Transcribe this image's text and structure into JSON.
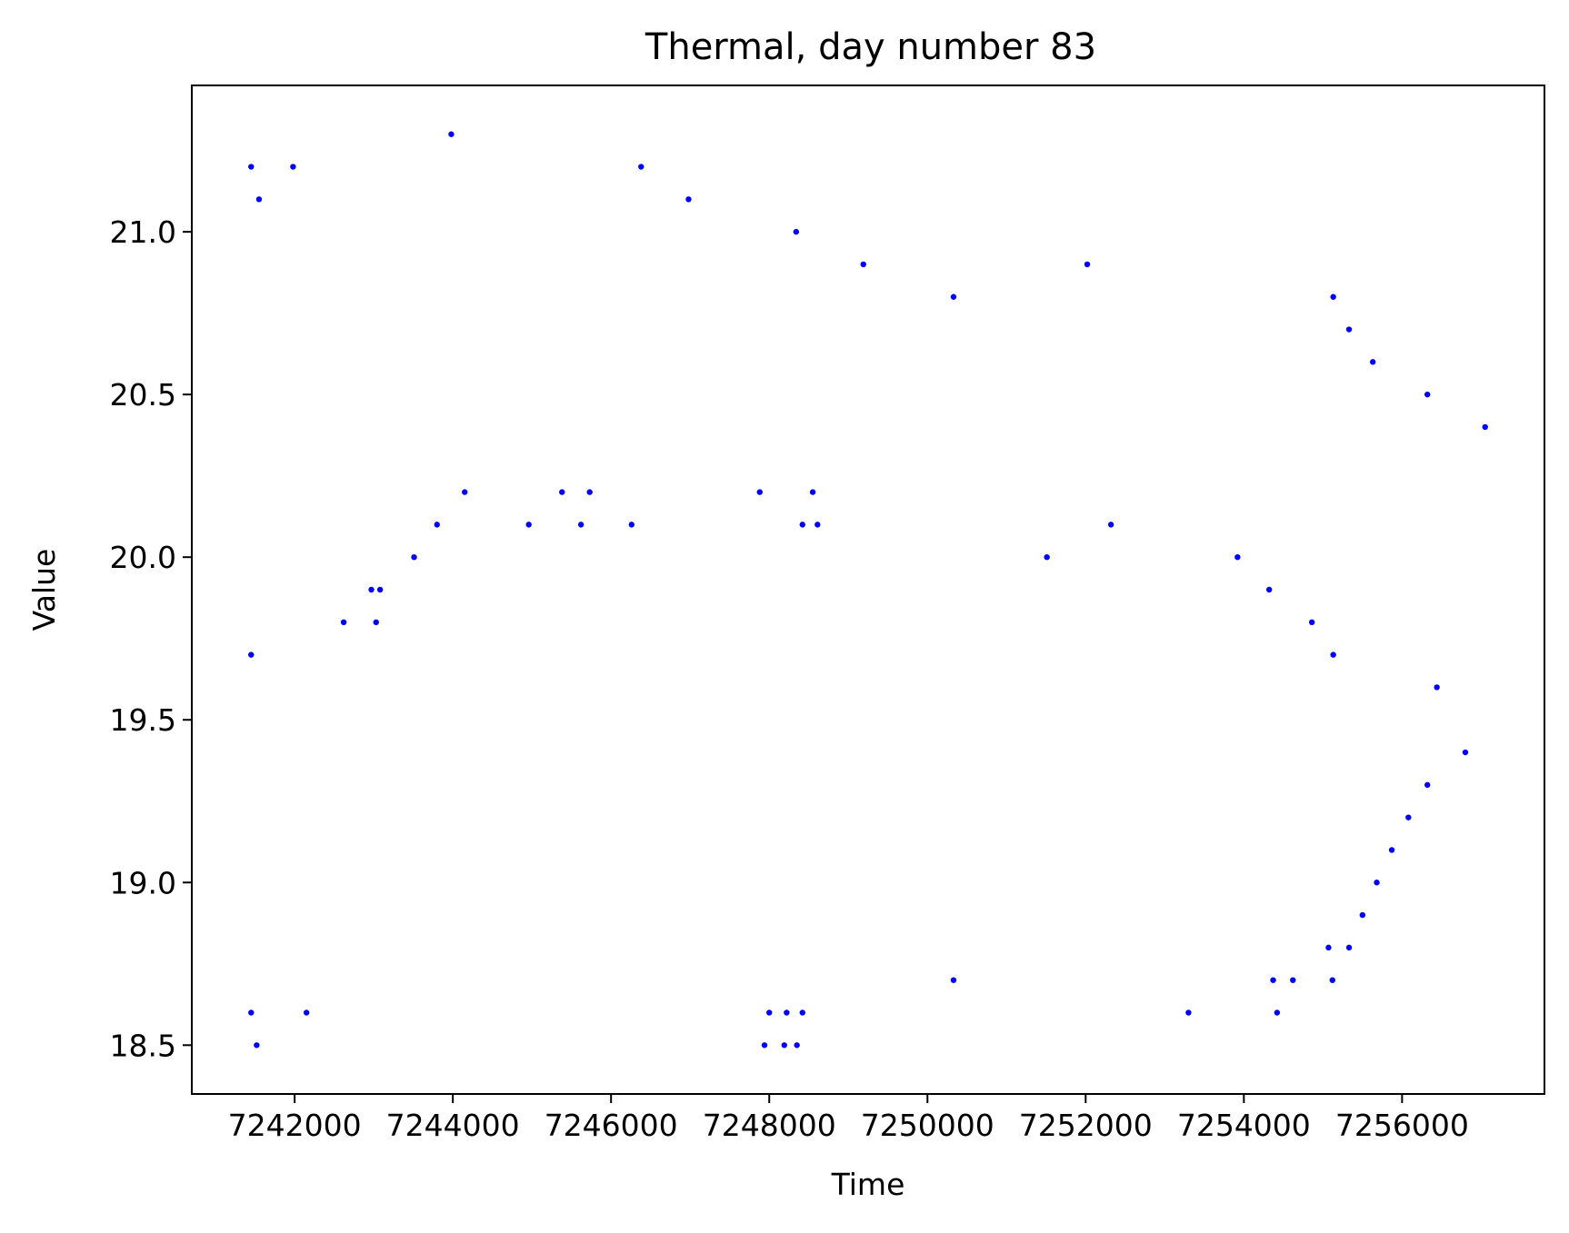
{
  "chart_data": {
    "type": "scatter",
    "title": "Thermal, day number 83",
    "xlabel": "Time",
    "ylabel": "Value",
    "xlim": [
      7240700,
      7257800
    ],
    "ylim": [
      18.35,
      21.45
    ],
    "xticks": [
      7242000,
      7244000,
      7246000,
      7248000,
      7250000,
      7252000,
      7254000,
      7256000
    ],
    "xtick_labels": [
      "7242000",
      "7244000",
      "7246000",
      "7248000",
      "7250000",
      "7252000",
      "7254000",
      "7256000"
    ],
    "yticks": [
      18.5,
      19.0,
      19.5,
      20.0,
      20.5,
      21.0
    ],
    "ytick_labels": [
      "18.5",
      "19.0",
      "19.5",
      "20.0",
      "20.5",
      "21.0"
    ],
    "grid": false,
    "legend": false,
    "marker_color": "#0000ff",
    "series": [
      {
        "points": [
          [
            7241450,
            21.2
          ],
          [
            7241550,
            21.1
          ],
          [
            7241980,
            21.2
          ],
          [
            7243980,
            21.3
          ],
          [
            7246380,
            21.2
          ],
          [
            7246980,
            21.1
          ],
          [
            7248340,
            21.0
          ],
          [
            7249190,
            20.9
          ],
          [
            7250330,
            20.8
          ],
          [
            7252020,
            20.9
          ],
          [
            7255130,
            20.8
          ],
          [
            7255330,
            20.7
          ],
          [
            7255630,
            20.6
          ],
          [
            7256320,
            20.5
          ],
          [
            7257050,
            20.4
          ],
          [
            7241450,
            19.7
          ],
          [
            7242620,
            19.8
          ],
          [
            7242970,
            19.9
          ],
          [
            7243030,
            19.8
          ],
          [
            7243080,
            19.9
          ],
          [
            7243510,
            20.0
          ],
          [
            7243800,
            20.1
          ],
          [
            7244150,
            20.2
          ],
          [
            7244960,
            20.1
          ],
          [
            7245380,
            20.2
          ],
          [
            7245620,
            20.1
          ],
          [
            7245730,
            20.2
          ],
          [
            7246260,
            20.1
          ],
          [
            7247880,
            20.2
          ],
          [
            7248420,
            20.1
          ],
          [
            7248550,
            20.2
          ],
          [
            7248610,
            20.1
          ],
          [
            7251510,
            20.0
          ],
          [
            7252320,
            20.1
          ],
          [
            7253920,
            20.0
          ],
          [
            7254320,
            19.9
          ],
          [
            7254860,
            19.8
          ],
          [
            7255130,
            19.7
          ],
          [
            7256440,
            19.6
          ],
          [
            7241450,
            18.6
          ],
          [
            7241520,
            18.5
          ],
          [
            7242150,
            18.6
          ],
          [
            7247940,
            18.5
          ],
          [
            7248000,
            18.6
          ],
          [
            7248190,
            18.5
          ],
          [
            7248220,
            18.6
          ],
          [
            7248350,
            18.5
          ],
          [
            7248420,
            18.6
          ],
          [
            7250330,
            18.7
          ],
          [
            7253300,
            18.6
          ],
          [
            7254370,
            18.7
          ],
          [
            7254420,
            18.6
          ],
          [
            7254620,
            18.7
          ],
          [
            7255070,
            18.8
          ],
          [
            7255120,
            18.7
          ],
          [
            7255330,
            18.8
          ],
          [
            7255500,
            18.9
          ],
          [
            7255680,
            19.0
          ],
          [
            7255870,
            19.1
          ],
          [
            7256080,
            19.2
          ],
          [
            7256320,
            19.3
          ],
          [
            7256800,
            19.4
          ]
        ]
      }
    ]
  }
}
